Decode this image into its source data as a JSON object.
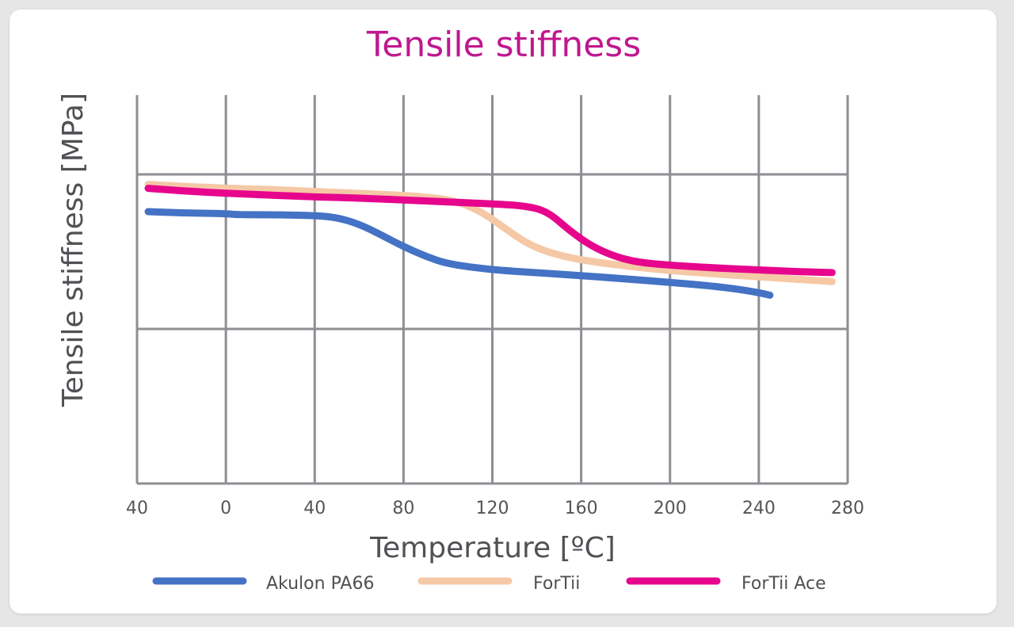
{
  "chart_data": {
    "type": "line",
    "title": "Tensile stiffness",
    "xlabel": "Temperature [ºC]",
    "ylabel": "Tensile stiffness [MPa]",
    "x_ticks": [
      "40",
      "0",
      "40",
      "80",
      "120",
      "160",
      "200",
      "240",
      "280"
    ],
    "xlim": [
      -40,
      280
    ],
    "grid": true,
    "legend_position": "bottom",
    "colors": {
      "title": "#c0178f",
      "grid": "#8e8e93",
      "akulon": "#4472c4",
      "fortii": "#f5c8a6",
      "fortii_ace": "#e6058c"
    },
    "series": [
      {
        "name": "Akulon PA66",
        "color_key": "akulon",
        "points": [
          [
            -35,
            0.7
          ],
          [
            -20,
            0.697
          ],
          [
            0,
            0.695
          ],
          [
            5,
            0.692
          ],
          [
            20,
            0.692
          ],
          [
            40,
            0.69
          ],
          [
            50,
            0.685
          ],
          [
            60,
            0.668
          ],
          [
            70,
            0.64
          ],
          [
            80,
            0.61
          ],
          [
            90,
            0.585
          ],
          [
            100,
            0.565
          ],
          [
            120,
            0.55
          ],
          [
            140,
            0.543
          ],
          [
            160,
            0.535
          ],
          [
            180,
            0.527
          ],
          [
            200,
            0.518
          ],
          [
            220,
            0.508
          ],
          [
            235,
            0.497
          ],
          [
            245,
            0.485
          ]
        ]
      },
      {
        "name": "ForTii",
        "color_key": "fortii",
        "points": [
          [
            -35,
            0.77
          ],
          [
            0,
            0.76
          ],
          [
            20,
            0.757
          ],
          [
            40,
            0.752
          ],
          [
            60,
            0.747
          ],
          [
            80,
            0.742
          ],
          [
            95,
            0.735
          ],
          [
            105,
            0.725
          ],
          [
            115,
            0.7
          ],
          [
            125,
            0.66
          ],
          [
            135,
            0.62
          ],
          [
            145,
            0.595
          ],
          [
            160,
            0.575
          ],
          [
            180,
            0.56
          ],
          [
            200,
            0.548
          ],
          [
            220,
            0.54
          ],
          [
            240,
            0.532
          ],
          [
            260,
            0.525
          ],
          [
            273,
            0.52
          ]
        ]
      },
      {
        "name": "ForTii Ace",
        "color_key": "fortii_ace",
        "points": [
          [
            -35,
            0.76
          ],
          [
            -10,
            0.75
          ],
          [
            10,
            0.745
          ],
          [
            40,
            0.738
          ],
          [
            60,
            0.735
          ],
          [
            80,
            0.73
          ],
          [
            100,
            0.725
          ],
          [
            120,
            0.72
          ],
          [
            135,
            0.715
          ],
          [
            145,
            0.7
          ],
          [
            155,
            0.65
          ],
          [
            165,
            0.61
          ],
          [
            175,
            0.585
          ],
          [
            185,
            0.57
          ],
          [
            200,
            0.562
          ],
          [
            220,
            0.555
          ],
          [
            240,
            0.55
          ],
          [
            260,
            0.545
          ],
          [
            273,
            0.543
          ]
        ]
      }
    ]
  }
}
